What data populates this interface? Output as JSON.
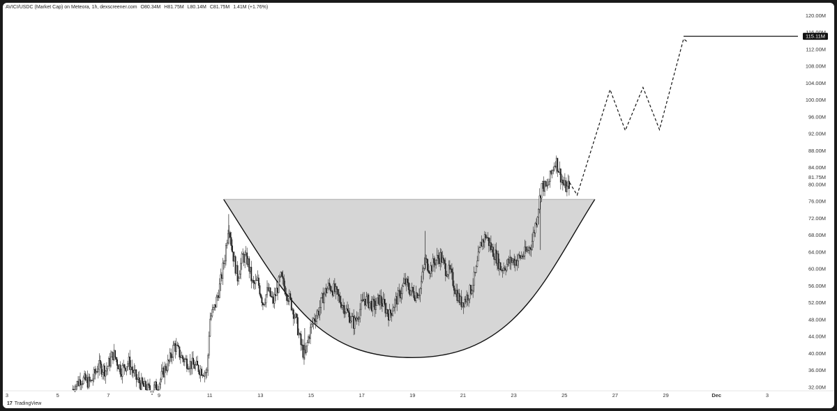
{
  "header": {
    "symbol": "AVICI/USDC (Market Cap) on Meteora, 1h, dexscreener.com",
    "open": "O80.34M",
    "high": "H81.75M",
    "low": "L80.14M",
    "close": "C81.75M",
    "change": "1.41M (+1.76%)"
  },
  "footer": {
    "brand": "TradingView",
    "brand_mark": "17"
  },
  "price_badge": {
    "value": "115.11M",
    "value_num": 115.11,
    "ghost_label": "116.00M"
  },
  "current_price_label": {
    "value": "81.75M",
    "value_num": 81.75
  },
  "chart_data": {
    "type": "candlestick",
    "title": "",
    "xlabel": "",
    "ylabel": "",
    "ylim": [
      30,
      122
    ],
    "y_ticks": [
      {
        "label": "120.00M",
        "value": 120
      },
      {
        "label": "112.00M",
        "value": 112
      },
      {
        "label": "108.00M",
        "value": 108
      },
      {
        "label": "104.00M",
        "value": 104
      },
      {
        "label": "100.00M",
        "value": 100
      },
      {
        "label": "96.00M",
        "value": 96
      },
      {
        "label": "92.00M",
        "value": 92
      },
      {
        "label": "88.00M",
        "value": 88
      },
      {
        "label": "84.00M",
        "value": 84
      },
      {
        "label": "80.00M",
        "value": 80
      },
      {
        "label": "76.00M",
        "value": 76
      },
      {
        "label": "72.00M",
        "value": 72
      },
      {
        "label": "68.00M",
        "value": 68
      },
      {
        "label": "64.00M",
        "value": 64
      },
      {
        "label": "60.00M",
        "value": 60
      },
      {
        "label": "56.00M",
        "value": 56
      },
      {
        "label": "52.00M",
        "value": 52
      },
      {
        "label": "48.00M",
        "value": 48
      },
      {
        "label": "44.00M",
        "value": 44
      },
      {
        "label": "40.00M",
        "value": 40
      },
      {
        "label": "36.00M",
        "value": 36
      },
      {
        "label": "32.00M",
        "value": 32
      }
    ],
    "x_ticks": [
      {
        "label": "3",
        "day": 3
      },
      {
        "label": "5",
        "day": 5
      },
      {
        "label": "7",
        "day": 7
      },
      {
        "label": "9",
        "day": 9
      },
      {
        "label": "11",
        "day": 11
      },
      {
        "label": "13",
        "day": 13
      },
      {
        "label": "15",
        "day": 15
      },
      {
        "label": "17",
        "day": 17
      },
      {
        "label": "19",
        "day": 19
      },
      {
        "label": "21",
        "day": 21
      },
      {
        "label": "23",
        "day": 23
      },
      {
        "label": "25",
        "day": 25
      },
      {
        "label": "27",
        "day": 27
      },
      {
        "label": "29",
        "day": 29
      },
      {
        "label": "Dec",
        "day": 31,
        "bold": true
      },
      {
        "label": "3",
        "day": 33
      }
    ],
    "price_path": [
      [
        5.6,
        31.5
      ],
      [
        5.9,
        34
      ],
      [
        6.3,
        33
      ],
      [
        6.6,
        37
      ],
      [
        6.9,
        36
      ],
      [
        7.2,
        40
      ],
      [
        7.5,
        36
      ],
      [
        7.8,
        38
      ],
      [
        8.1,
        34
      ],
      [
        8.4,
        32
      ],
      [
        8.7,
        31
      ],
      [
        9.0,
        33
      ],
      [
        9.2,
        36
      ],
      [
        9.4,
        38
      ],
      [
        9.6,
        42
      ],
      [
        9.9,
        39
      ],
      [
        10.1,
        38
      ],
      [
        10.4,
        37
      ],
      [
        10.7,
        36
      ],
      [
        10.9,
        35.5
      ],
      [
        11.0,
        48
      ],
      [
        11.2,
        51
      ],
      [
        11.4,
        56
      ],
      [
        11.6,
        63
      ],
      [
        11.75,
        71
      ],
      [
        11.9,
        64
      ],
      [
        12.1,
        58
      ],
      [
        12.3,
        63
      ],
      [
        12.5,
        62
      ],
      [
        12.7,
        56
      ],
      [
        12.9,
        57
      ],
      [
        13.1,
        52
      ],
      [
        13.3,
        55
      ],
      [
        13.5,
        52
      ],
      [
        13.8,
        58
      ],
      [
        14.0,
        55
      ],
      [
        14.2,
        52
      ],
      [
        14.4,
        48
      ],
      [
        14.6,
        42
      ],
      [
        14.75,
        39
      ],
      [
        14.9,
        44
      ],
      [
        15.1,
        48
      ],
      [
        15.3,
        50
      ],
      [
        15.5,
        54
      ],
      [
        15.7,
        56
      ],
      [
        15.9,
        55
      ],
      [
        16.1,
        53
      ],
      [
        16.3,
        51
      ],
      [
        16.5,
        49
      ],
      [
        16.7,
        47
      ],
      [
        16.9,
        50
      ],
      [
        17.1,
        53
      ],
      [
        17.3,
        52
      ],
      [
        17.5,
        51
      ],
      [
        17.7,
        53
      ],
      [
        17.9,
        51
      ],
      [
        18.1,
        49
      ],
      [
        18.3,
        52
      ],
      [
        18.5,
        54
      ],
      [
        18.7,
        57
      ],
      [
        18.9,
        55
      ],
      [
        19.1,
        54
      ],
      [
        19.3,
        55
      ],
      [
        19.5,
        62
      ],
      [
        19.7,
        60
      ],
      [
        19.9,
        62
      ],
      [
        20.1,
        63
      ],
      [
        20.3,
        60
      ],
      [
        20.5,
        59
      ],
      [
        20.7,
        55
      ],
      [
        20.9,
        52
      ],
      [
        21.1,
        53
      ],
      [
        21.3,
        55
      ],
      [
        21.5,
        59
      ],
      [
        21.7,
        66
      ],
      [
        21.9,
        68
      ],
      [
        22.1,
        65
      ],
      [
        22.3,
        63
      ],
      [
        22.5,
        60
      ],
      [
        22.7,
        61
      ],
      [
        22.9,
        62
      ],
      [
        23.1,
        62
      ],
      [
        23.3,
        63
      ],
      [
        23.5,
        64
      ],
      [
        23.7,
        66
      ],
      [
        23.9,
        72
      ],
      [
        24.1,
        80
      ],
      [
        24.3,
        79
      ],
      [
        24.5,
        83
      ],
      [
        24.65,
        86
      ],
      [
        24.8,
        83
      ],
      [
        24.95,
        80
      ],
      [
        25.1,
        79
      ],
      [
        25.2,
        80.5
      ]
    ],
    "projection_path": [
      [
        25.2,
        80.5
      ],
      [
        25.5,
        77.5
      ],
      [
        26.8,
        102.5
      ],
      [
        27.4,
        92.8
      ],
      [
        28.1,
        103
      ],
      [
        28.75,
        93
      ],
      [
        29.7,
        114.5
      ],
      [
        29.85,
        113.8
      ]
    ],
    "resistance_line": {
      "x_from": 29.7,
      "x_to": 35,
      "y": 115.11
    },
    "cup_shape": {
      "rim_y": 76.5,
      "left_x": 11.55,
      "right_x": 26.2,
      "bottom_x": 19.0,
      "bottom_y": 39.0
    }
  }
}
